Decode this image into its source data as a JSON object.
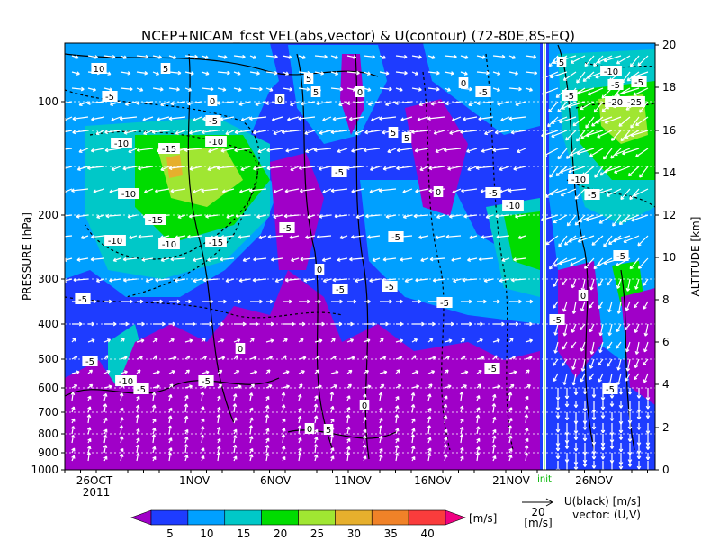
{
  "chart_data": {
    "type": "heatmap",
    "title": "NCEP+NICAM_fcst VEL(abs,vector) & U(contour)   (72-80E,8S-EQ)",
    "y_left_label": "PRESSURE [hPa]",
    "y_right_label": "ALTITUDE [km]",
    "y_left_ticks": [
      "100",
      "200",
      "300",
      "400",
      "500",
      "600",
      "700",
      "800",
      "900",
      "1000"
    ],
    "y_right_ticks": [
      "20",
      "18",
      "16",
      "14",
      "12",
      "10",
      "8",
      "6",
      "4",
      "2",
      "0"
    ],
    "x_tick_labels": [
      "26OCT",
      "1NOV",
      "6NOV",
      "11NOV",
      "16NOV",
      "21NOV",
      "26NOV"
    ],
    "year_label": "2011",
    "init_label": "init",
    "colorbar": {
      "ticks": [
        "5",
        "10",
        "15",
        "20",
        "25",
        "30",
        "35",
        "40"
      ],
      "unit": "[m/s]",
      "colors": [
        "#a000c8",
        "#1e3cff",
        "#00a0ff",
        "#00c8c8",
        "#00dc00",
        "#a0e632",
        "#e6af2d",
        "#f08228",
        "#fa3c3c",
        "#f00082"
      ]
    },
    "vector_ref": {
      "value": "20",
      "unit": "[m/s]"
    },
    "legend_right": {
      "line1": "U(black) [m/s]",
      "line2": "vector: (U,V)"
    },
    "contour_labels": [
      "10",
      "5",
      "-5",
      "0",
      "-10",
      "-15",
      "-20",
      "-25",
      "0",
      "5"
    ]
  }
}
